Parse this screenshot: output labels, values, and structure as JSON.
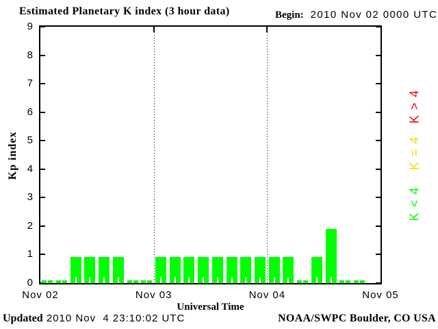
{
  "title": "Estimated Planetary K index (3 hour data)",
  "begin": {
    "label": "Begin:",
    "value": "2010 Nov 02 0000 UTC"
  },
  "footer": {
    "updated_label": "Updated",
    "updated_value": "2010 Nov  4 23:10:02 UTC",
    "credit": "NOAA/SWPC Boulder, CO USA"
  },
  "chart_data": {
    "type": "bar",
    "title": "Estimated Planetary K index (3 hour data)",
    "xlabel": "Universal Time",
    "ylabel": "Kp index",
    "ylim": [
      0,
      9
    ],
    "yticks": [
      0,
      1,
      2,
      3,
      4,
      5,
      6,
      7,
      8,
      9
    ],
    "xticklabels": [
      "Nov 02",
      "Nov 03",
      "Nov 04",
      "Nov 05"
    ],
    "bars_per_day": 8,
    "bar_hours": 3,
    "bar_color": "#00ff00",
    "grid": "dotted vertical lines at day boundaries",
    "legend_position": "right, rotated 90deg",
    "days": [
      {
        "date": "Nov 02",
        "values": [
          0,
          0,
          1,
          1,
          1,
          1,
          0,
          0
        ]
      },
      {
        "date": "Nov 03",
        "values": [
          1,
          1,
          1,
          1,
          1,
          1,
          1,
          1
        ]
      },
      {
        "date": "Nov 04",
        "values": [
          1,
          1,
          0,
          1,
          2,
          0,
          0
        ]
      }
    ],
    "legend": [
      {
        "label": "K>4",
        "color": "#ff0000"
      },
      {
        "label": "K=4",
        "color": "#ffd700"
      },
      {
        "label": "K<4",
        "color": "#00ff00"
      }
    ]
  }
}
